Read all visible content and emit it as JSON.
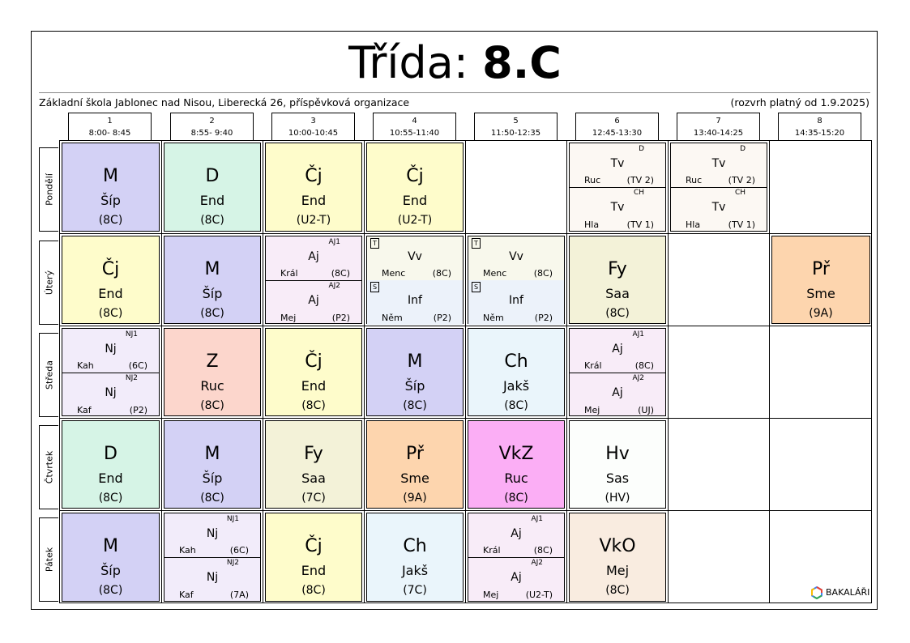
{
  "title": {
    "prefix": "Třída: ",
    "class": "8.C"
  },
  "school": "Základní škola Jablonec nad Nisou, Liberecká 26, příspěvková organizace",
  "validity": "(rozvrh platný od 1.9.2025)",
  "periods": [
    {
      "num": "1",
      "time": "8:00- 8:45"
    },
    {
      "num": "2",
      "time": "8:55- 9:40"
    },
    {
      "num": "3",
      "time": "10:00-10:45"
    },
    {
      "num": "4",
      "time": "10:55-11:40"
    },
    {
      "num": "5",
      "time": "11:50-12:35"
    },
    {
      "num": "6",
      "time": "12:45-13:30"
    },
    {
      "num": "7",
      "time": "13:40-14:25"
    },
    {
      "num": "8",
      "time": "14:35-15:20"
    }
  ],
  "days": [
    "Pondělí",
    "Úterý",
    "Středa",
    "Čtvrtek",
    "Pátek"
  ],
  "lessons": [
    {
      "day": 0,
      "period": 0,
      "subject": "M",
      "teacher": "Šíp",
      "room": "(8C)",
      "color": "#d3d1f5"
    },
    {
      "day": 0,
      "period": 1,
      "subject": "D",
      "teacher": "End",
      "room": "(8C)",
      "color": "#d6f4e6"
    },
    {
      "day": 0,
      "period": 2,
      "subject": "Čj",
      "teacher": "End",
      "room": "(U2-T)",
      "color": "#fefccb"
    },
    {
      "day": 0,
      "period": 3,
      "subject": "Čj",
      "teacher": "End",
      "room": "(U2-T)",
      "color": "#fefccb"
    },
    {
      "day": 0,
      "period": 5,
      "color": "#fcf8f3",
      "halves": [
        {
          "group": "D",
          "subject": "Tv",
          "teacher": "Ruc",
          "room": "(TV 2)"
        },
        {
          "group": "CH",
          "subject": "Tv",
          "teacher": "Hla",
          "room": "(TV 1)"
        }
      ]
    },
    {
      "day": 0,
      "period": 6,
      "color": "#fcf8f3",
      "halves": [
        {
          "group": "D",
          "subject": "Tv",
          "teacher": "Ruc",
          "room": "(TV 2)"
        },
        {
          "group": "CH",
          "subject": "Tv",
          "teacher": "Hla",
          "room": "(TV 1)"
        }
      ]
    },
    {
      "day": 1,
      "period": 0,
      "subject": "Čj",
      "teacher": "End",
      "room": "(8C)",
      "color": "#fefccb"
    },
    {
      "day": 1,
      "period": 1,
      "subject": "M",
      "teacher": "Šíp",
      "room": "(8C)",
      "color": "#d3d1f5"
    },
    {
      "day": 1,
      "period": 2,
      "color": "#f8ecf8",
      "halves": [
        {
          "group": "AJ1",
          "subject": "Aj",
          "teacher": "Král",
          "room": "(8C)"
        },
        {
          "group": "AJ2",
          "subject": "Aj",
          "teacher": "Mej",
          "room": "(P2)"
        }
      ]
    },
    {
      "day": 1,
      "period": 3,
      "color": "#f8f8ec",
      "halves": [
        {
          "flag": "T",
          "group": "",
          "subject": "Vv",
          "teacher": "Menc",
          "room": "(8C)",
          "color": "#f8f8ec"
        },
        {
          "flag": "S",
          "group": "",
          "subject": "Inf",
          "teacher": "Něm",
          "room": "(P2)",
          "color": "#ecf2fa"
        }
      ]
    },
    {
      "day": 1,
      "period": 4,
      "color": "#f8f8ec",
      "halves": [
        {
          "flag": "T",
          "group": "",
          "subject": "Vv",
          "teacher": "Menc",
          "room": "(8C)",
          "color": "#f8f8ec"
        },
        {
          "flag": "S",
          "group": "",
          "subject": "Inf",
          "teacher": "Něm",
          "room": "(P2)",
          "color": "#ecf2fa"
        }
      ]
    },
    {
      "day": 1,
      "period": 5,
      "subject": "Fy",
      "teacher": "Saa",
      "room": "(8C)",
      "color": "#f3f2d8"
    },
    {
      "day": 1,
      "period": 7,
      "subject": "Př",
      "teacher": "Sme",
      "room": "(9A)",
      "color": "#fdd5ae"
    },
    {
      "day": 2,
      "period": 0,
      "color": "#f2ecfa",
      "halves": [
        {
          "group": "NJ1",
          "subject": "Nj",
          "teacher": "Kah",
          "room": "(6C)"
        },
        {
          "group": "NJ2",
          "subject": "Nj",
          "teacher": "Kaf",
          "room": "(P2)"
        }
      ]
    },
    {
      "day": 2,
      "period": 1,
      "subject": "Z",
      "teacher": "Ruc",
      "room": "(8C)",
      "color": "#fcd6cc"
    },
    {
      "day": 2,
      "period": 2,
      "subject": "Čj",
      "teacher": "End",
      "room": "(8C)",
      "color": "#fefccb"
    },
    {
      "day": 2,
      "period": 3,
      "subject": "M",
      "teacher": "Šíp",
      "room": "(8C)",
      "color": "#d3d1f5"
    },
    {
      "day": 2,
      "period": 4,
      "subject": "Ch",
      "teacher": "Jakš",
      "room": "(8C)",
      "color": "#eaf5fb"
    },
    {
      "day": 2,
      "period": 5,
      "color": "#f8ecf8",
      "halves": [
        {
          "group": "AJ1",
          "subject": "Aj",
          "teacher": "Král",
          "room": "(8C)"
        },
        {
          "group": "AJ2",
          "subject": "Aj",
          "teacher": "Mej",
          "room": "(UJ)"
        }
      ]
    },
    {
      "day": 3,
      "period": 0,
      "subject": "D",
      "teacher": "End",
      "room": "(8C)",
      "color": "#d6f4e6"
    },
    {
      "day": 3,
      "period": 1,
      "subject": "M",
      "teacher": "Šíp",
      "room": "(8C)",
      "color": "#d3d1f5"
    },
    {
      "day": 3,
      "period": 2,
      "subject": "Fy",
      "teacher": "Saa",
      "room": "(7C)",
      "color": "#f3f2d8"
    },
    {
      "day": 3,
      "period": 3,
      "subject": "Př",
      "teacher": "Sme",
      "room": "(9A)",
      "color": "#fdd5ae"
    },
    {
      "day": 3,
      "period": 4,
      "subject": "VkZ",
      "teacher": "Ruc",
      "room": "(8C)",
      "color": "#fbaef5"
    },
    {
      "day": 3,
      "period": 5,
      "subject": "Hv",
      "teacher": "Sas",
      "room": "(HV)",
      "color": "#fcfefc"
    },
    {
      "day": 4,
      "period": 0,
      "subject": "M",
      "teacher": "Šíp",
      "room": "(8C)",
      "color": "#d3d1f5"
    },
    {
      "day": 4,
      "period": 1,
      "color": "#f2ecfa",
      "halves": [
        {
          "group": "NJ1",
          "subject": "Nj",
          "teacher": "Kah",
          "room": "(6C)"
        },
        {
          "group": "NJ2",
          "subject": "Nj",
          "teacher": "Kaf",
          "room": "(7A)"
        }
      ]
    },
    {
      "day": 4,
      "period": 2,
      "subject": "Čj",
      "teacher": "End",
      "room": "(8C)",
      "color": "#fefccb"
    },
    {
      "day": 4,
      "period": 3,
      "subject": "Ch",
      "teacher": "Jakš",
      "room": "(7C)",
      "color": "#eaf5fb"
    },
    {
      "day": 4,
      "period": 4,
      "color": "#f8ecf8",
      "halves": [
        {
          "group": "AJ1",
          "subject": "Aj",
          "teacher": "Král",
          "room": "(8C)"
        },
        {
          "group": "AJ2",
          "subject": "Aj",
          "teacher": "Mej",
          "room": "(U2-T)"
        }
      ]
    },
    {
      "day": 4,
      "period": 5,
      "subject": "VkO",
      "teacher": "Mej",
      "room": "(8C)",
      "color": "#f9ece0"
    }
  ],
  "logo": {
    "text": "BAKALÁŘI",
    "icon": "bakalari-logo-icon"
  }
}
